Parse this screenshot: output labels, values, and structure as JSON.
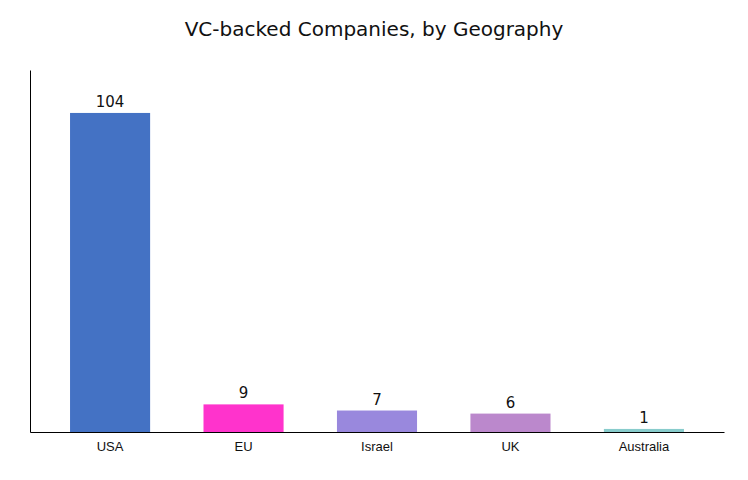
{
  "chart_data": {
    "type": "bar",
    "title": "VC-backed Companies, by Geography",
    "categories": [
      "USA",
      "EU",
      "Israel",
      "UK",
      "Australia"
    ],
    "values": [
      104,
      9,
      7,
      6,
      1
    ],
    "colors": [
      "#4472C4",
      "#FF33CC",
      "#9988DD",
      "#BB88CC",
      "#88CCCC"
    ],
    "ylim": [
      0,
      118
    ],
    "data_labels": true,
    "tick_labels": "x"
  }
}
